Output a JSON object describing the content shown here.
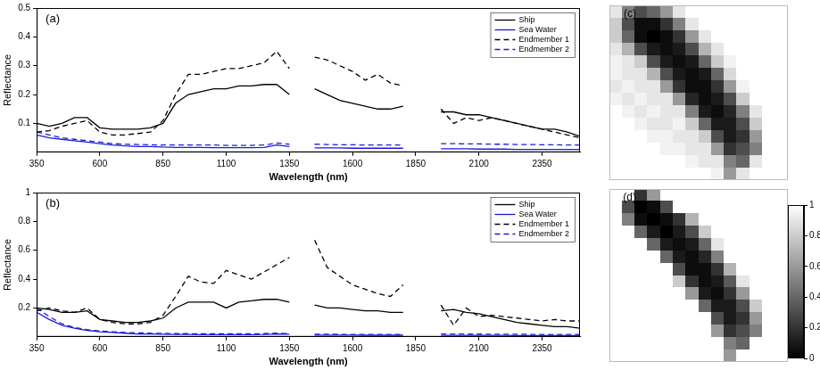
{
  "chart_data": [
    {
      "type": "line",
      "title": "(a)",
      "x_label": "Wavelength (nm)",
      "y_label": "Reflectance",
      "xlim": [
        350,
        2500
      ],
      "xticks": [
        350,
        600,
        850,
        1100,
        1350,
        1600,
        1850,
        2100,
        2350
      ],
      "ylim": [
        0,
        0.5
      ],
      "yticks": [
        0.1,
        0.2,
        0.3,
        0.4,
        0.5
      ],
      "grid": false,
      "legend": "upper right",
      "x": [
        350,
        400,
        450,
        500,
        550,
        600,
        650,
        700,
        750,
        800,
        850,
        900,
        950,
        1000,
        1050,
        1100,
        1150,
        1200,
        1250,
        1300,
        1350,
        1400,
        1450,
        1500,
        1550,
        1600,
        1650,
        1700,
        1750,
        1800,
        1850,
        1900,
        1950,
        2000,
        2050,
        2100,
        2150,
        2200,
        2250,
        2300,
        2350,
        2400,
        2450,
        2500
      ],
      "series": [
        {
          "name": "Ship",
          "color": "#000000",
          "line_style": "solid",
          "values": [
            0.1,
            0.09,
            0.1,
            0.12,
            0.12,
            0.085,
            0.08,
            0.08,
            0.08,
            0.085,
            0.1,
            0.17,
            0.2,
            0.21,
            0.22,
            0.22,
            0.23,
            0.23,
            0.235,
            0.235,
            0.2,
            null,
            0.22,
            0.2,
            0.18,
            0.17,
            0.16,
            0.15,
            0.15,
            0.16,
            null,
            null,
            0.14,
            0.14,
            0.13,
            0.13,
            0.12,
            0.11,
            0.1,
            0.09,
            0.08,
            0.08,
            0.07,
            0.055
          ]
        },
        {
          "name": "Sea Water",
          "color": "#1a1adf",
          "line_style": "solid",
          "values": [
            0.06,
            0.05,
            0.045,
            0.04,
            0.035,
            0.03,
            0.025,
            0.022,
            0.02,
            0.02,
            0.018,
            0.017,
            0.017,
            0.017,
            0.016,
            0.016,
            0.016,
            0.016,
            0.017,
            0.025,
            0.02,
            null,
            0.015,
            0.015,
            0.015,
            0.014,
            0.014,
            0.014,
            0.014,
            0.014,
            null,
            null,
            0.012,
            0.012,
            0.012,
            0.011,
            0.011,
            0.011,
            0.01,
            0.01,
            0.01,
            0.01,
            0.01,
            0.01
          ]
        },
        {
          "name": "Endmember 1",
          "color": "#000000",
          "line_style": "dashed",
          "values": [
            0.07,
            0.075,
            0.09,
            0.1,
            0.11,
            0.07,
            0.06,
            0.06,
            0.065,
            0.07,
            0.11,
            0.2,
            0.27,
            0.27,
            0.28,
            0.29,
            0.29,
            0.3,
            0.31,
            0.35,
            0.29,
            null,
            0.33,
            0.32,
            0.3,
            0.28,
            0.25,
            0.27,
            0.24,
            0.23,
            null,
            null,
            0.15,
            0.1,
            0.12,
            0.11,
            0.12,
            0.11,
            0.1,
            0.09,
            0.08,
            0.07,
            0.06,
            0.05
          ]
        },
        {
          "name": "Endmember 2",
          "color": "#1a1adf",
          "line_style": "dashed",
          "values": [
            0.07,
            0.06,
            0.05,
            0.045,
            0.04,
            0.035,
            0.03,
            0.028,
            0.027,
            0.026,
            0.025,
            0.025,
            0.025,
            0.025,
            0.025,
            0.024,
            0.024,
            0.024,
            0.025,
            0.032,
            0.028,
            null,
            0.028,
            0.027,
            0.026,
            0.026,
            0.025,
            0.025,
            0.025,
            0.025,
            null,
            null,
            0.03,
            0.03,
            0.029,
            0.029,
            0.028,
            0.028,
            0.027,
            0.027,
            0.026,
            0.026,
            0.025,
            0.025
          ]
        }
      ]
    },
    {
      "type": "line",
      "title": "(b)",
      "x_label": "Wavelength (nm)",
      "y_label": "Reflectance",
      "xlim": [
        350,
        2500
      ],
      "xticks": [
        350,
        600,
        850,
        1100,
        1350,
        1600,
        1850,
        2100,
        2350
      ],
      "ylim": [
        0,
        1
      ],
      "yticks": [
        0.2,
        0.4,
        0.6,
        0.8,
        1
      ],
      "grid": false,
      "legend": "upper right",
      "x": [
        350,
        400,
        450,
        500,
        550,
        600,
        650,
        700,
        750,
        800,
        850,
        900,
        950,
        1000,
        1050,
        1100,
        1150,
        1200,
        1250,
        1300,
        1350,
        1400,
        1450,
        1500,
        1550,
        1600,
        1650,
        1700,
        1750,
        1800,
        1850,
        1900,
        1950,
        2000,
        2050,
        2100,
        2150,
        2200,
        2250,
        2300,
        2350,
        2400,
        2450,
        2500
      ],
      "series": [
        {
          "name": "Ship",
          "color": "#000000",
          "line_style": "solid",
          "values": [
            0.2,
            0.19,
            0.17,
            0.17,
            0.18,
            0.12,
            0.11,
            0.1,
            0.1,
            0.11,
            0.13,
            0.2,
            0.24,
            0.24,
            0.24,
            0.2,
            0.24,
            0.25,
            0.26,
            0.26,
            0.24,
            null,
            0.22,
            0.2,
            0.2,
            0.19,
            0.18,
            0.18,
            0.17,
            0.17,
            null,
            null,
            0.18,
            0.19,
            0.17,
            0.16,
            0.14,
            0.12,
            0.1,
            0.09,
            0.08,
            0.07,
            0.07,
            0.06
          ]
        },
        {
          "name": "Sea Water",
          "color": "#1a1adf",
          "line_style": "solid",
          "values": [
            0.17,
            0.12,
            0.08,
            0.06,
            0.045,
            0.035,
            0.03,
            0.025,
            0.02,
            0.02,
            0.018,
            0.016,
            0.016,
            0.015,
            0.015,
            0.015,
            0.015,
            0.015,
            0.016,
            0.02,
            0.018,
            null,
            0.012,
            0.012,
            0.012,
            0.012,
            0.011,
            0.011,
            0.011,
            0.011,
            null,
            null,
            0.01,
            0.01,
            0.01,
            0.01,
            0.01,
            0.01,
            0.009,
            0.009,
            0.009,
            0.009,
            0.009,
            0.009
          ]
        },
        {
          "name": "Endmember 1",
          "color": "#000000",
          "line_style": "dashed",
          "values": [
            0.18,
            0.2,
            0.18,
            0.17,
            0.2,
            0.12,
            0.1,
            0.09,
            0.09,
            0.1,
            0.15,
            0.28,
            0.42,
            0.38,
            0.37,
            0.46,
            0.43,
            0.4,
            0.45,
            0.5,
            0.55,
            null,
            0.67,
            0.48,
            0.42,
            0.36,
            0.33,
            0.3,
            0.28,
            0.36,
            null,
            null,
            0.22,
            0.08,
            0.2,
            0.14,
            0.15,
            0.14,
            0.13,
            0.12,
            0.11,
            0.12,
            0.11,
            0.11
          ]
        },
        {
          "name": "Endmember 2",
          "color": "#1a1adf",
          "line_style": "dashed",
          "values": [
            0.2,
            0.14,
            0.09,
            0.065,
            0.05,
            0.04,
            0.035,
            0.03,
            0.028,
            0.025,
            0.024,
            0.022,
            0.022,
            0.021,
            0.021,
            0.021,
            0.021,
            0.021,
            0.022,
            0.026,
            0.022,
            null,
            0.018,
            0.018,
            0.017,
            0.017,
            0.017,
            0.016,
            0.016,
            0.016,
            null,
            null,
            0.02,
            0.02,
            0.019,
            0.019,
            0.018,
            0.018,
            0.018,
            0.017,
            0.017,
            0.017,
            0.016,
            0.016
          ]
        }
      ]
    },
    {
      "type": "heatmap",
      "title": "(c)",
      "tick_labels": false,
      "cells": [
        [
          0.9,
          0.5,
          0.3,
          0.4,
          0.6,
          0.9,
          1,
          1,
          1,
          1,
          1,
          1,
          1,
          1
        ],
        [
          0.8,
          0.3,
          0.05,
          0.05,
          0.2,
          0.5,
          0.9,
          1,
          1,
          1,
          1,
          1,
          1,
          1
        ],
        [
          0.8,
          0.4,
          0.05,
          0,
          0.05,
          0.2,
          0.6,
          0.9,
          1,
          1,
          1,
          1,
          1,
          1
        ],
        [
          0.9,
          0.7,
          0.3,
          0.1,
          0.05,
          0.1,
          0.3,
          0.7,
          0.9,
          1,
          1,
          1,
          1,
          1
        ],
        [
          0.95,
          0.9,
          0.8,
          0.3,
          0.1,
          0.05,
          0.1,
          0.4,
          0.8,
          0.95,
          1,
          1,
          1,
          1
        ],
        [
          0.95,
          0.9,
          0.9,
          0.7,
          0.3,
          0.1,
          0.05,
          0.1,
          0.4,
          0.85,
          1,
          1,
          1,
          1
        ],
        [
          0.9,
          0.95,
          0.9,
          0.9,
          0.6,
          0.2,
          0.05,
          0.05,
          0.2,
          0.6,
          0.95,
          1,
          1,
          1
        ],
        [
          0.95,
          0.9,
          0.95,
          0.9,
          0.9,
          0.6,
          0.15,
          0.05,
          0.1,
          0.3,
          0.8,
          1,
          1,
          1
        ],
        [
          1,
          0.95,
          0.9,
          0.95,
          0.9,
          0.9,
          0.5,
          0.1,
          0.05,
          0.15,
          0.5,
          0.9,
          1,
          1
        ],
        [
          1,
          1,
          0.95,
          0.9,
          0.9,
          0.95,
          0.8,
          0.4,
          0.1,
          0.1,
          0.3,
          0.8,
          1,
          1
        ],
        [
          1,
          1,
          1,
          0.95,
          0.95,
          0.9,
          0.9,
          0.8,
          0.3,
          0.1,
          0.2,
          0.6,
          1,
          1
        ],
        [
          1,
          1,
          1,
          1,
          0.95,
          0.95,
          0.9,
          0.9,
          0.6,
          0.2,
          0.3,
          0.5,
          1,
          1
        ],
        [
          1,
          1,
          1,
          1,
          1,
          1,
          0.95,
          0.9,
          0.9,
          0.5,
          0.4,
          0.9,
          1,
          1
        ],
        [
          1,
          1,
          1,
          1,
          1,
          1,
          1,
          1,
          0.95,
          0.6,
          0.9,
          1,
          1,
          1
        ]
      ]
    },
    {
      "type": "heatmap",
      "title": "(d)",
      "tick_labels": false,
      "cells": [
        [
          1,
          1,
          0.2,
          0.6,
          1,
          1,
          1,
          1,
          1,
          1,
          1,
          1,
          1,
          1
        ],
        [
          1,
          0.3,
          0,
          0.05,
          0.3,
          1,
          1,
          1,
          1,
          1,
          1,
          1,
          1,
          1
        ],
        [
          1,
          0.5,
          0.05,
          0,
          0.05,
          0.2,
          0.7,
          1,
          1,
          1,
          1,
          1,
          1,
          1
        ],
        [
          1,
          1,
          0.4,
          0.1,
          0,
          0.1,
          0.3,
          0.8,
          1,
          1,
          1,
          1,
          1,
          1
        ],
        [
          1,
          1,
          1,
          0.4,
          0.1,
          0.05,
          0.1,
          0.4,
          0.9,
          1,
          1,
          1,
          1,
          1
        ],
        [
          1,
          1,
          1,
          1,
          0.4,
          0.1,
          0.05,
          0.15,
          0.5,
          1,
          1,
          1,
          1,
          1
        ],
        [
          1,
          1,
          1,
          1,
          1,
          0.3,
          0.05,
          0.05,
          0.2,
          0.7,
          1,
          1,
          1,
          1
        ],
        [
          1,
          1,
          1,
          1,
          1,
          0.8,
          0.2,
          0.05,
          0.1,
          0.35,
          0.9,
          1,
          1,
          1
        ],
        [
          1,
          1,
          1,
          1,
          1,
          1,
          0.6,
          0.1,
          0.05,
          0.2,
          0.6,
          1,
          1,
          1
        ],
        [
          1,
          1,
          1,
          1,
          1,
          1,
          1,
          0.4,
          0.1,
          0.1,
          0.3,
          0.8,
          1,
          1
        ],
        [
          1,
          1,
          1,
          1,
          1,
          1,
          1,
          1,
          0.3,
          0.1,
          0.2,
          0.6,
          1,
          1
        ],
        [
          1,
          1,
          1,
          1,
          1,
          1,
          1,
          1,
          0.6,
          0.2,
          0.3,
          0.5,
          1,
          1
        ],
        [
          1,
          1,
          1,
          1,
          1,
          1,
          1,
          1,
          1,
          0.5,
          0.4,
          1,
          1,
          1
        ],
        [
          1,
          1,
          1,
          1,
          1,
          1,
          1,
          1,
          1,
          0.6,
          1,
          1,
          1,
          1
        ]
      ],
      "colorbar": {
        "range": [
          0,
          1
        ],
        "ticks": [
          0,
          0.2,
          0.4,
          0.6,
          0.8,
          1
        ]
      }
    }
  ]
}
